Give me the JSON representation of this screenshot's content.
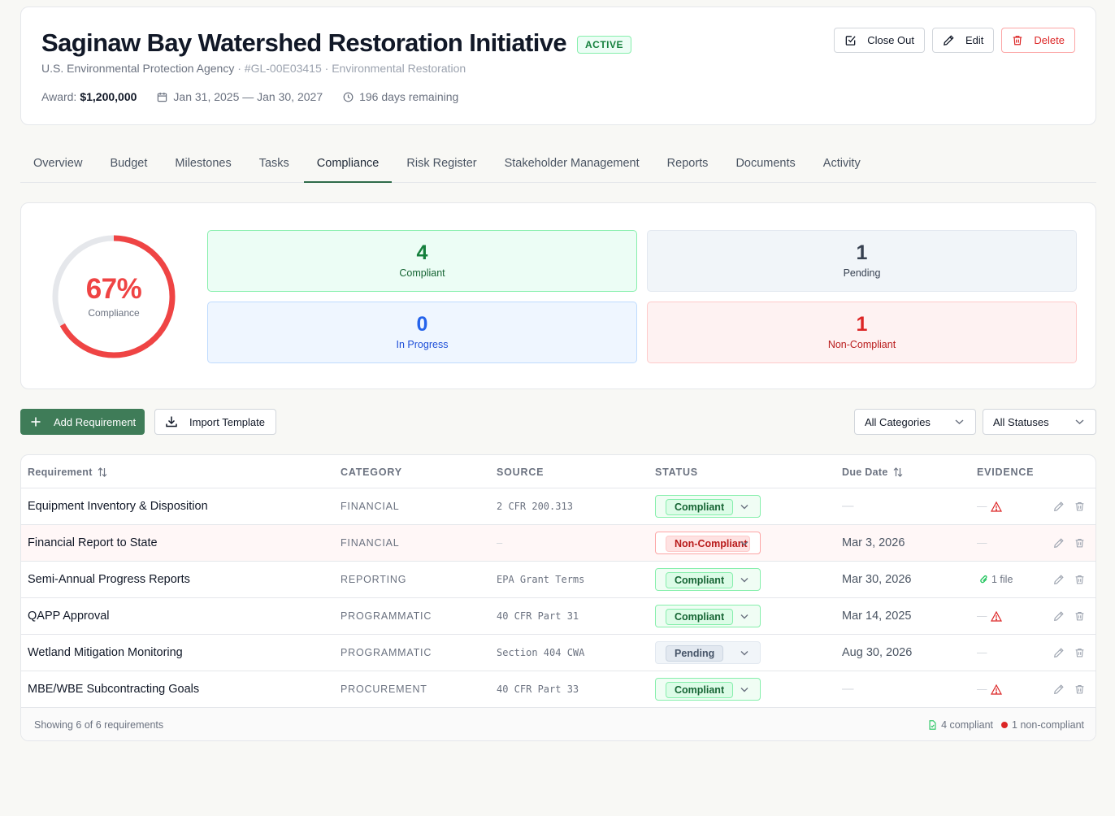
{
  "header": {
    "title": "Saginaw Bay Watershed Restoration Initiative",
    "status_badge": "ACTIVE",
    "agency": "U.S. Environmental Protection Agency",
    "grant_id": "· #GL-00E03415 ·",
    "program_area": "Environmental Restoration",
    "award_label": "Award:",
    "award_amount": "$1,200,000",
    "date_range": "Jan 31, 2025 — Jan 30, 2027",
    "days_remaining": "196 days remaining",
    "buttons": {
      "close_out": "Close Out",
      "edit": "Edit",
      "delete": "Delete"
    }
  },
  "tabs": [
    {
      "label": "Overview"
    },
    {
      "label": "Budget"
    },
    {
      "label": "Milestones"
    },
    {
      "label": "Tasks"
    },
    {
      "label": "Compliance",
      "active": true
    },
    {
      "label": "Risk Register"
    },
    {
      "label": "Stakeholder Management"
    },
    {
      "label": "Reports"
    },
    {
      "label": "Documents"
    },
    {
      "label": "Activity"
    }
  ],
  "summary": {
    "compliance_pct": "67%",
    "compliance_value": 0.67,
    "compliance_label": "Compliance",
    "compliant": {
      "count": "4",
      "label": "Compliant"
    },
    "pending": {
      "count": "1",
      "label": "Pending"
    },
    "in_progress": {
      "count": "0",
      "label": "In Progress"
    },
    "non_compliant": {
      "count": "1",
      "label": "Non-Compliant"
    }
  },
  "toolbar": {
    "add_requirement": "Add Requirement",
    "import_template": "Import Template",
    "category_filter": "All Categories",
    "status_filter": "All Statuses"
  },
  "table": {
    "columns": {
      "requirement": "Requirement",
      "category": "CATEGORY",
      "source": "SOURCE",
      "status": "STATUS",
      "due_date": "Due Date",
      "evidence": "EVIDENCE"
    },
    "rows": [
      {
        "requirement": "Equipment Inventory & Disposition",
        "category": "FINANCIAL",
        "source": "2 CFR 200.313",
        "status": "Compliant",
        "due_date": "—",
        "evidence": "—",
        "evidence_warning": true
      },
      {
        "requirement": "Financial Report to State",
        "category": "FINANCIAL",
        "source": "—",
        "status": "Non-Compliant",
        "due_date": "Mar 3, 2026",
        "evidence": "—",
        "evidence_warning": false
      },
      {
        "requirement": "Semi-Annual Progress Reports",
        "category": "REPORTING",
        "source": "EPA Grant Terms",
        "status": "Compliant",
        "due_date": "Mar 30, 2026",
        "evidence": "1 file",
        "evidence_warning": false
      },
      {
        "requirement": "QAPP Approval",
        "category": "PROGRAMMATIC",
        "source": "40 CFR Part 31",
        "status": "Compliant",
        "due_date": "Mar 14, 2025",
        "evidence": "—",
        "evidence_warning": true
      },
      {
        "requirement": "Wetland Mitigation Monitoring",
        "category": "PROGRAMMATIC",
        "source": "Section 404 CWA",
        "status": "Pending",
        "due_date": "Aug 30, 2026",
        "evidence": "—",
        "evidence_warning": false
      },
      {
        "requirement": "MBE/WBE Subcontracting Goals",
        "category": "PROCUREMENT",
        "source": "40 CFR Part 33",
        "status": "Compliant",
        "due_date": "—",
        "evidence": "—",
        "evidence_warning": true
      }
    ],
    "footer": {
      "showing": "Showing 6 of 6 requirements",
      "compliant_count": "4 compliant",
      "noncompliant_count": "1 non-compliant"
    }
  },
  "colors": {
    "brand_green": "#3f7c58",
    "danger": "#dc2626",
    "donut_progress": "#ef4444",
    "donut_track": "#e5e7eb"
  }
}
